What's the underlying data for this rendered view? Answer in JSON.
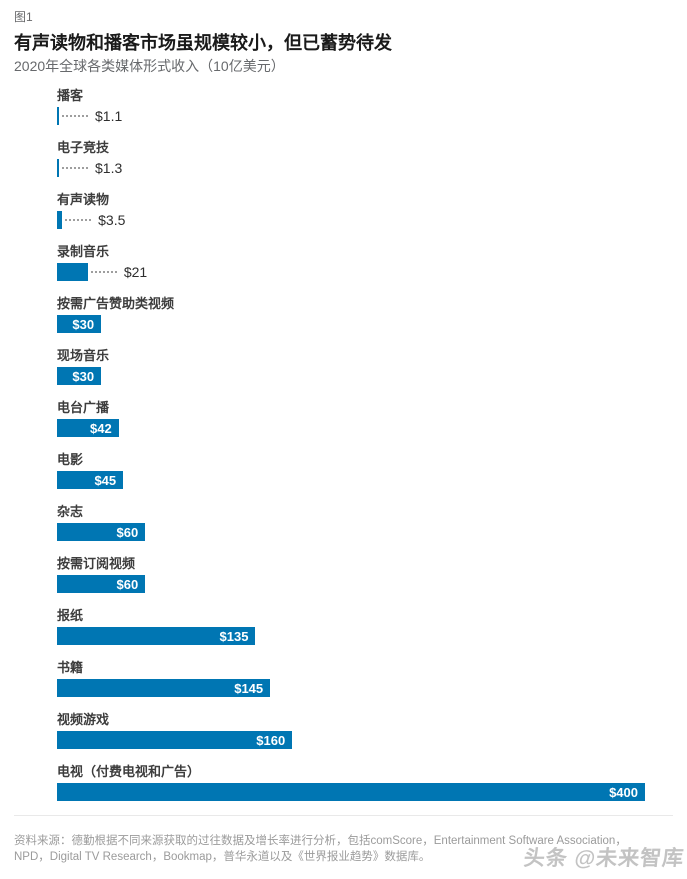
{
  "header": {
    "figure_label": "图1",
    "title": "有声读物和播客市场虽规模较小，但已蓄势待发",
    "subtitle": "2020年全球各类媒体形式收入（10亿美元）"
  },
  "chart_data": {
    "type": "bar",
    "orientation": "horizontal",
    "title": "有声读物和播客市场虽规模较小，但已蓄势待发",
    "subtitle": "2020年全球各类媒体形式收入（10亿美元）",
    "unit": "10亿美元",
    "categories": [
      "播客",
      "电子竞技",
      "有声读物",
      "录制音乐",
      "按需广告赞助类视频",
      "现场音乐",
      "电台广播",
      "电影",
      "杂志",
      "按需订阅视频",
      "报纸",
      "书籍",
      "视频游戏",
      "电视（付费电视和广告）"
    ],
    "values": [
      1.1,
      1.3,
      3.5,
      21,
      30,
      30,
      42,
      45,
      60,
      60,
      135,
      145,
      160,
      400
    ],
    "value_labels": [
      "$1.1",
      "$1.3",
      "$3.5",
      "$21",
      "$30",
      "$30",
      "$42",
      "$45",
      "$60",
      "$60",
      "$135",
      "$145",
      "$160",
      "$400"
    ],
    "xlim": [
      0,
      400
    ],
    "bar_color": "#0076B3",
    "grid": false,
    "legend": false
  },
  "footer": {
    "source_lines": [
      "资料来源：德勤根据不同来源获取的过往数据及增长率进行分析，包括comScore，Entertainment Software Association，",
      "NPD，Digital TV Research，Bookmap，普华永道以及《世界报业趋势》数据库。"
    ],
    "watermark": "头条 @未来智库"
  }
}
